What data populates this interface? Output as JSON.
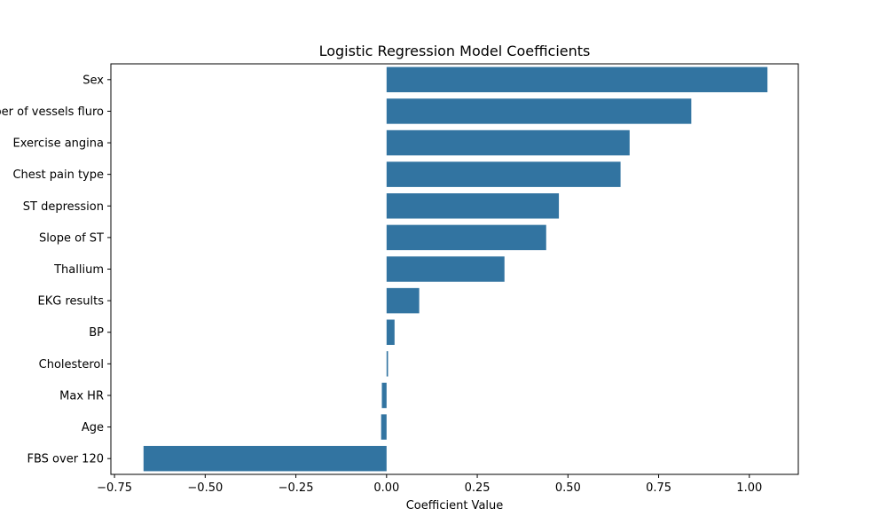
{
  "chart_data": {
    "type": "bar",
    "orientation": "horizontal",
    "title": "Logistic Regression Model Coefficients",
    "xlabel": "Coefficient Value",
    "ylabel": "",
    "xlim": [
      -0.76,
      1.135
    ],
    "xticks": [
      -0.75,
      -0.5,
      -0.25,
      0.0,
      0.25,
      0.5,
      0.75,
      1.0
    ],
    "xtick_labels": [
      "−0.75",
      "−0.50",
      "−0.25",
      "0.00",
      "0.25",
      "0.50",
      "0.75",
      "1.00"
    ],
    "categories": [
      "Sex",
      "Number of vessels fluro",
      "Exercise angina",
      "Chest pain type",
      "ST depression",
      "Slope of ST",
      "Thallium",
      "EKG results",
      "BP",
      "Cholesterol",
      "Max HR",
      "Age",
      "FBS over 120"
    ],
    "values": [
      1.05,
      0.84,
      0.67,
      0.645,
      0.475,
      0.44,
      0.325,
      0.09,
      0.022,
      0.004,
      -0.013,
      -0.015,
      -0.67
    ],
    "bar_color": "#3274a1",
    "grid": false,
    "legend": "none"
  }
}
